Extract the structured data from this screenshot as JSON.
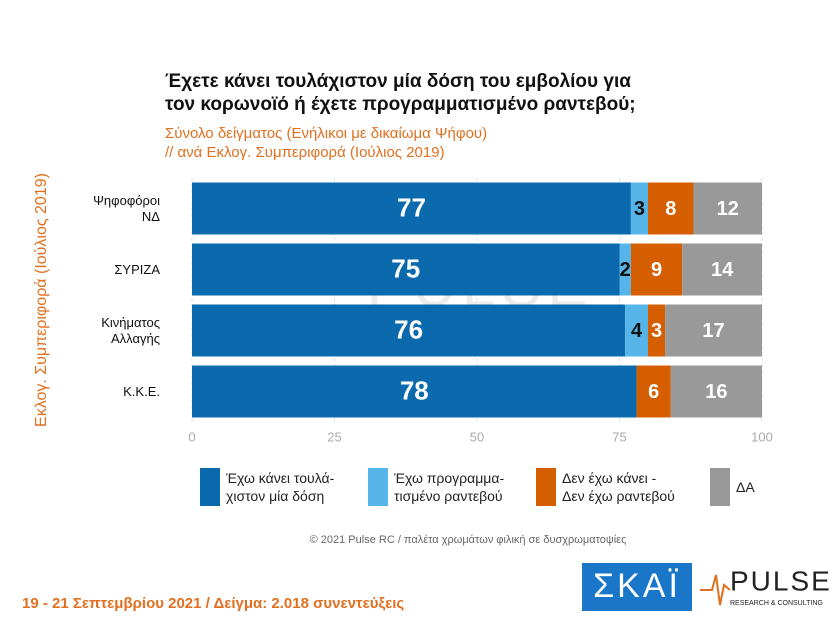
{
  "chart_data": {
    "type": "stacked_bar_horizontal",
    "title": "Έχετε κάνει τουλάχιστον μία δόση του εμβολίου για\nτον κορωνοϊό ή έχετε προγραμματισμένο ραντεβού;",
    "subtitle": "Σύνολο δείγματος (Ενήλικοι με δικαίωμα Ψήφου)\n // ανά Εκλογ. Συμπεριφορά (Ιούλιος 2019)",
    "y_label": "Εκλογ. Συμπεριφορά (Ιούλιος 2019)",
    "categories": [
      "Ψηφοφόροι\nΝΔ",
      "ΣΥΡΙΖΑ",
      "Κινήματος\nΑλλαγής",
      "Κ.Κ.Ε."
    ],
    "series": [
      {
        "name": "Έχω κάνει τουλά-\nχιστον μία δόση",
        "color": "#0a6aad",
        "values": [
          77,
          75,
          76,
          78
        ]
      },
      {
        "name": "Έχω προγραμμα-\nτισμένο ραντεβού",
        "color": "#56b4e9",
        "values": [
          3,
          2,
          4,
          null
        ]
      },
      {
        "name": "Δεν έχω κάνει -\nΔεν έχω ραντεβού",
        "color": "#d55e00",
        "values": [
          8,
          9,
          3,
          6
        ]
      },
      {
        "name": "ΔΑ",
        "color": "#999999",
        "values": [
          12,
          14,
          17,
          16
        ]
      }
    ],
    "xlim": [
      0,
      100
    ],
    "xticks": [
      0,
      25,
      50,
      75,
      100
    ],
    "grid": true,
    "credit": "© 2021 Pulse RC  /  παλέτα χρωμάτων φιλική σε δυσχρωματοψίες",
    "footer": "19 - 21 Σεπτεμβρίου 2021  /  Δείγμα:  2.018 συνεντεύξεις",
    "logo_skai": "ΣΚΑΪ",
    "logo_pulse": "PULSE",
    "logo_pulse_sub": "RESEARCH & CONSULTING"
  }
}
